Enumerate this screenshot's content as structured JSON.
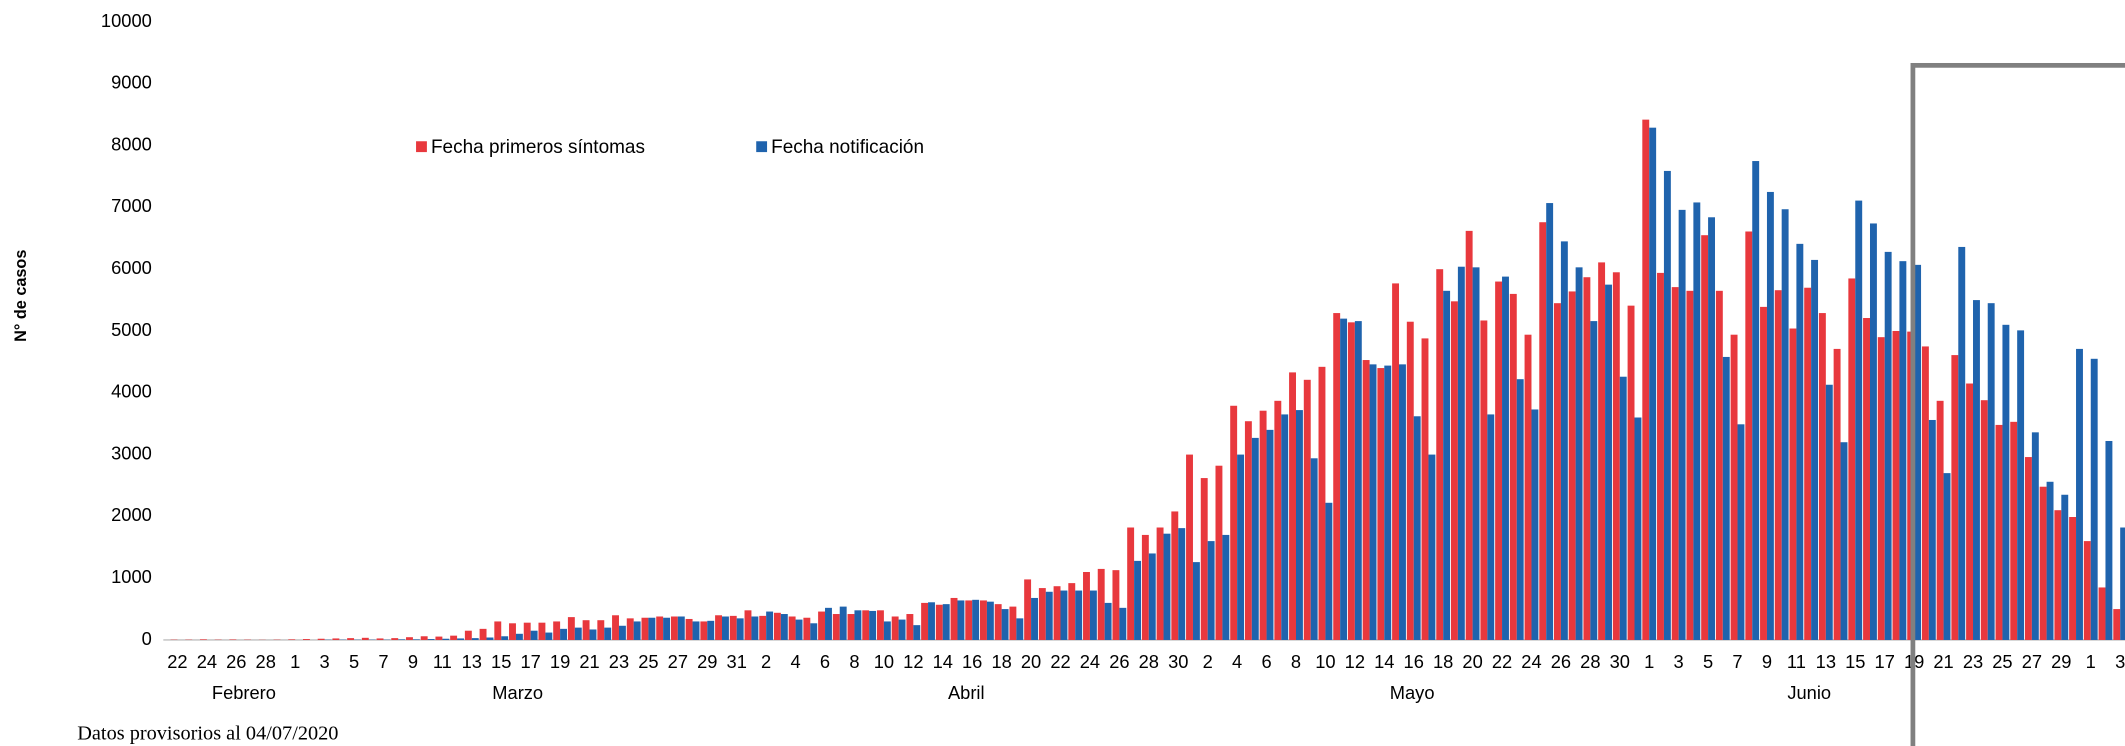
{
  "chart_data": {
    "type": "bar",
    "y_label": "N° de casos",
    "footnote": "Datos provisorios al 04/07/2020",
    "months": [
      "Febrero",
      "Marzo",
      "Abril",
      "Mayo",
      "Junio"
    ],
    "categories": [
      "22",
      null,
      "24",
      null,
      "26",
      null,
      "28",
      null,
      "1",
      null,
      "3",
      null,
      "5",
      null,
      "7",
      null,
      "9",
      null,
      "11",
      null,
      "13",
      null,
      "15",
      null,
      "17",
      null,
      "19",
      null,
      "21",
      null,
      "23",
      null,
      "25",
      null,
      "27",
      null,
      "29",
      null,
      "31",
      null,
      "2",
      null,
      "4",
      null,
      "6",
      null,
      "8",
      null,
      "10",
      null,
      "12",
      null,
      "14",
      null,
      "16",
      null,
      "18",
      null,
      "20",
      null,
      "22",
      null,
      "24",
      null,
      "26",
      null,
      "28",
      null,
      "30",
      null,
      "2",
      null,
      "4",
      null,
      "6",
      null,
      "8",
      null,
      "10",
      null,
      "12",
      null,
      "14",
      null,
      "16",
      null,
      "18",
      null,
      "20",
      null,
      "22",
      null,
      "24",
      null,
      "26",
      null,
      "28",
      null,
      "30",
      null,
      "1",
      null,
      "3",
      null,
      "5",
      null,
      "7",
      null,
      "9",
      null,
      "11",
      null,
      "13",
      null,
      "15",
      null,
      "17",
      null,
      "19",
      null,
      "21",
      null,
      "23",
      null,
      "25",
      null,
      "27",
      null,
      "29",
      null,
      "1",
      null,
      "3"
    ],
    "series": [
      {
        "name": "Fecha primeros síntomas",
        "color": "#e8383d",
        "values": [
          5,
          5,
          10,
          5,
          8,
          5,
          3,
          5,
          10,
          15,
          20,
          25,
          30,
          35,
          25,
          30,
          45,
          60,
          55,
          70,
          150,
          180,
          300,
          270,
          280,
          280,
          300,
          370,
          320,
          320,
          400,
          350,
          360,
          380,
          380,
          340,
          300,
          400,
          390,
          480,
          390,
          440,
          380,
          360,
          460,
          420,
          420,
          480,
          480,
          380,
          420,
          600,
          570,
          680,
          640,
          640,
          580,
          540,
          980,
          840,
          870,
          920,
          1100,
          1150,
          1130,
          1820,
          1700,
          1820,
          2080,
          3000,
          2620,
          2820,
          3790,
          3540,
          3710,
          3870,
          4330,
          4210,
          4420,
          5290,
          5140,
          4530,
          4400,
          5770,
          5150,
          4880,
          6000,
          5480,
          6620,
          5170,
          5800,
          5600,
          4940,
          6760,
          5450,
          5640,
          5870,
          6110,
          5950,
          5410,
          8420,
          5940,
          5710,
          5650,
          6550,
          5650,
          4940,
          6610,
          5390,
          5660,
          5040,
          5700,
          5290,
          4710,
          5850,
          5210,
          4900,
          5000,
          4990,
          4750,
          3870,
          4610,
          4150,
          3880,
          3480,
          3530,
          2960,
          2480,
          2100,
          1990,
          1600,
          850,
          500
        ]
      },
      {
        "name": "Fecha notificación",
        "color": "#1f63ad",
        "values": [
          0,
          0,
          0,
          0,
          0,
          0,
          0,
          0,
          0,
          0,
          5,
          5,
          5,
          5,
          5,
          10,
          10,
          15,
          20,
          25,
          30,
          40,
          60,
          100,
          150,
          120,
          180,
          200,
          170,
          200,
          230,
          300,
          360,
          360,
          380,
          300,
          310,
          380,
          350,
          380,
          460,
          420,
          330,
          270,
          520,
          540,
          480,
          470,
          300,
          330,
          240,
          610,
          580,
          640,
          650,
          620,
          500,
          350,
          680,
          780,
          800,
          800,
          800,
          600,
          520,
          1280,
          1400,
          1720,
          1810,
          1260,
          1600,
          1700,
          3000,
          3270,
          3400,
          3650,
          3720,
          2940,
          2220,
          5200,
          5160,
          4460,
          4440,
          4460,
          3620,
          3000,
          5650,
          6040,
          6030,
          3650,
          5880,
          4220,
          3730,
          7070,
          6450,
          6030,
          5160,
          5750,
          4260,
          3600,
          8290,
          7590,
          6960,
          7080,
          6840,
          4580,
          3490,
          7750,
          7250,
          6970,
          6410,
          6150,
          4130,
          3200,
          7110,
          6740,
          6280,
          6130,
          6070,
          3560,
          2700,
          6360,
          5500,
          5450,
          5100,
          5010,
          3360,
          2560,
          2350,
          4710,
          4550,
          3220,
          1820
        ]
      }
    ],
    "ylim": [
      0,
      10000
    ],
    "yticks": [
      0,
      1000,
      2000,
      3000,
      4000,
      5000,
      6000,
      7000,
      8000,
      9000,
      10000
    ],
    "grid": false
  }
}
